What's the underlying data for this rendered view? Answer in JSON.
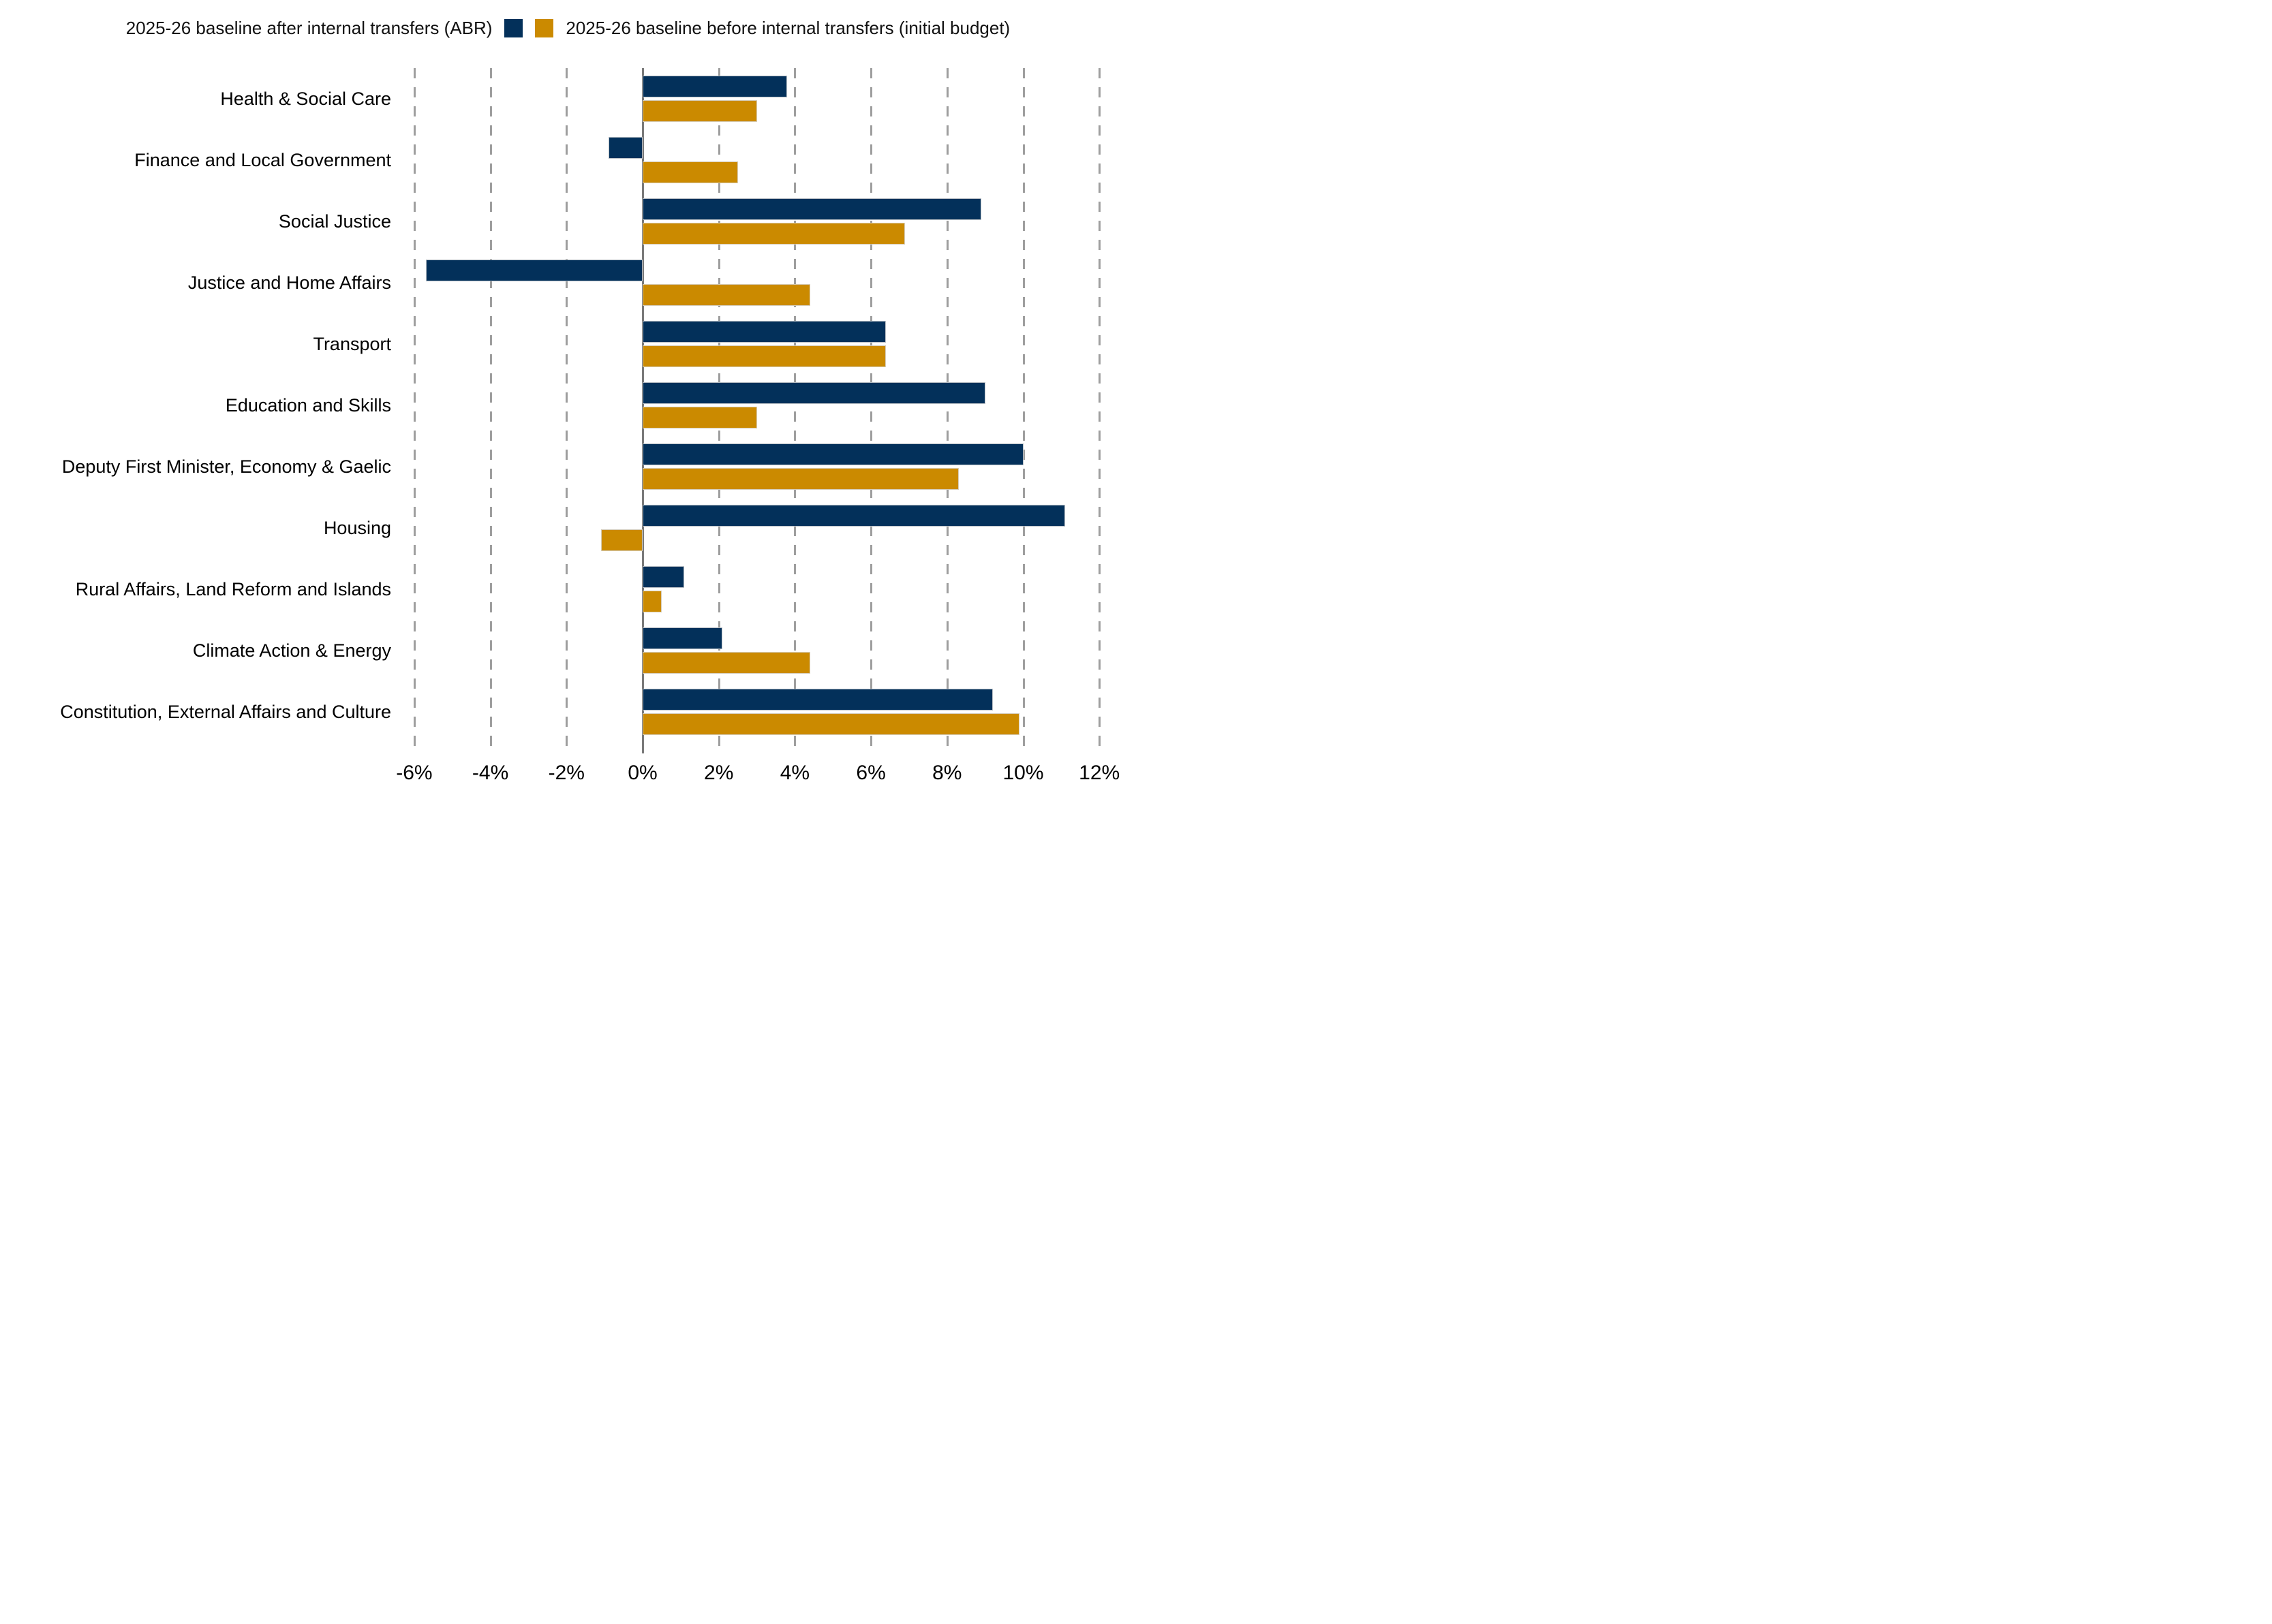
{
  "legend": {
    "after_label": "2025-26 baseline after internal transfers (ABR)",
    "before_label": "2025-26 baseline before internal transfers (initial budget)"
  },
  "colors": {
    "after": "#03305a",
    "before": "#cb8a00",
    "gridline": "#9e9e9e",
    "zero_line": "#7a7a7a"
  },
  "chart_data": {
    "type": "bar",
    "orientation": "horizontal",
    "title": "",
    "xlabel": "",
    "ylabel": "",
    "grid": "vertical-dashed",
    "legend_position": "top-center",
    "categories": [
      "Health & Social Care",
      "Finance and Local Government",
      "Social Justice",
      "Justice and Home Affairs",
      "Transport",
      "Education and Skills",
      "Deputy First Minister, Economy & Gaelic",
      "Housing",
      "Rural Affairs, Land Reform and Islands",
      "Climate Action & Energy",
      "Constitution, External Affairs and Culture"
    ],
    "series": [
      {
        "name": "2025-26 baseline after internal transfers (ABR)",
        "color_key": "after",
        "values": [
          3.8,
          -0.9,
          8.9,
          -5.7,
          6.4,
          9.0,
          10.0,
          11.1,
          1.1,
          2.1,
          9.2
        ]
      },
      {
        "name": "2025-26 baseline before internal transfers (initial budget)",
        "color_key": "before",
        "values": [
          3.0,
          2.5,
          6.9,
          4.4,
          6.4,
          3.0,
          8.3,
          -1.1,
          0.5,
          4.4,
          9.9
        ]
      }
    ],
    "x_axis": {
      "min": -6,
      "max": 12,
      "ticks": [
        -6,
        -4,
        -2,
        0,
        2,
        4,
        6,
        8,
        10,
        12
      ],
      "tick_labels": [
        "-6%",
        "-4%",
        "-2%",
        "0%",
        "2%",
        "4%",
        "6%",
        "8%",
        "10%",
        "12%"
      ],
      "unit": "percent"
    }
  }
}
